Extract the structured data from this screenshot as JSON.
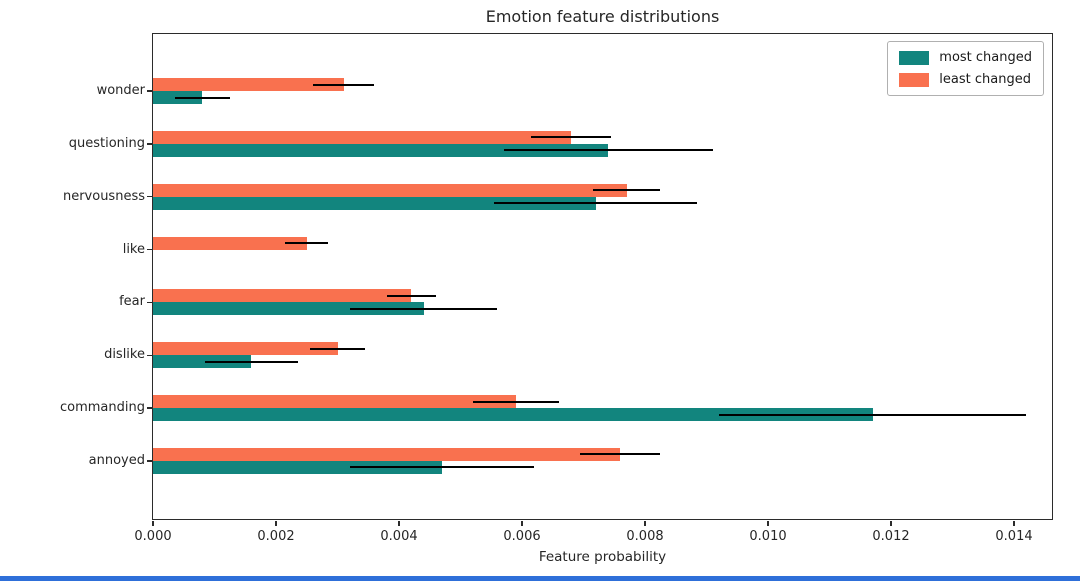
{
  "chart_data": {
    "type": "bar",
    "orientation": "horizontal",
    "title": "Emotion feature distributions",
    "xlabel": "Feature probability",
    "ylabel": "",
    "categories": [
      "wonder",
      "questioning",
      "nervousness",
      "like",
      "fear",
      "dislike",
      "commanding",
      "annoyed"
    ],
    "series": [
      {
        "name": "most changed",
        "color": "#12857e",
        "values": [
          0.0008,
          0.0074,
          0.0072,
          0,
          0.0044,
          0.0016,
          0.0117,
          0.0047
        ],
        "errors": [
          0.00045,
          0.0017,
          0.00165,
          0,
          0.0012,
          0.00076,
          0.0025,
          0.0015
        ]
      },
      {
        "name": "least changed",
        "color": "#f9714f",
        "values": [
          0.0031,
          0.0068,
          0.0077,
          0.0025,
          0.0042,
          0.003,
          0.0059,
          0.0076
        ],
        "errors": [
          0.0005,
          0.00065,
          0.00055,
          0.00035,
          0.0004,
          0.00045,
          0.0007,
          0.00065
        ]
      }
    ],
    "x_ticks": [
      0,
      0.002,
      0.004,
      0.006,
      0.008,
      0.01,
      0.012,
      0.014
    ],
    "x_tick_labels": [
      "0.000",
      "0.002",
      "0.004",
      "0.006",
      "0.008",
      "0.010",
      "0.012",
      "0.014"
    ],
    "xlim": [
      0,
      0.01465
    ],
    "grid": false,
    "legend": {
      "position": "upper right",
      "entries": [
        "most changed",
        "least changed"
      ]
    },
    "error_bar_color": "#000000"
  },
  "colors": {
    "axis": "#2b2b2b",
    "text": "#262626",
    "legend_border": "#b0b0b0",
    "window_strip": "#2e6fd9"
  }
}
